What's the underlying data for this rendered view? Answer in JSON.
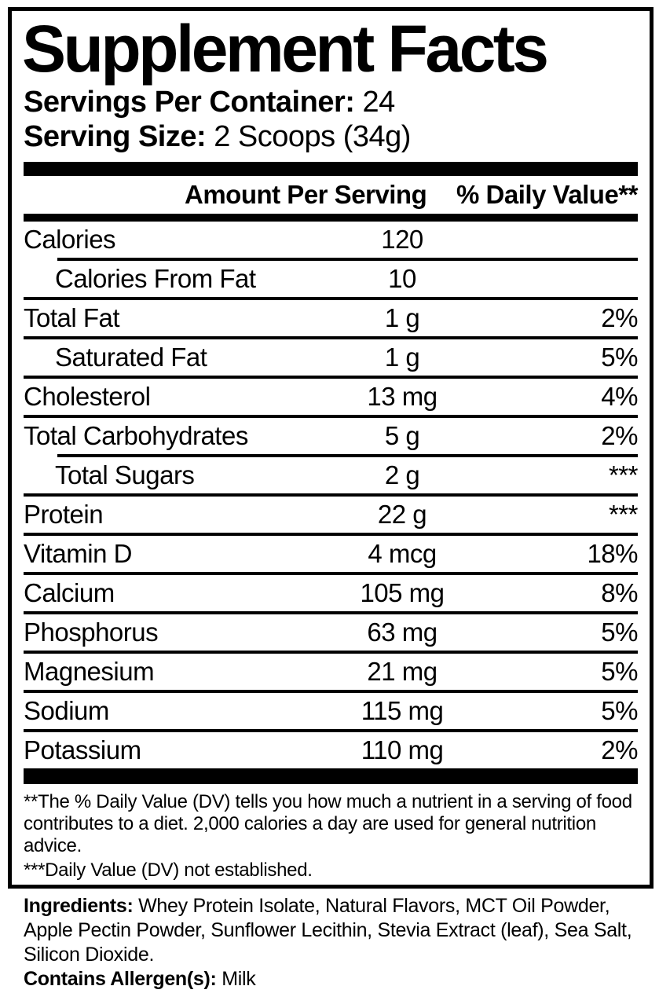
{
  "colors": {
    "ink": "#000000",
    "paper": "#ffffff"
  },
  "panel": {
    "title": "Supplement Facts",
    "servings_per_container_label": "Servings Per Container:",
    "servings_per_container_value": "24",
    "serving_size_label": "Serving Size:",
    "serving_size_value": "2 Scoops (34g)"
  },
  "table": {
    "amount_header": "Amount Per Serving",
    "dv_header": "% Daily Value**",
    "rows": [
      {
        "name": "Calories",
        "amount": "120",
        "dv": "",
        "indent": false,
        "separator": "none"
      },
      {
        "name": "Calories From Fat",
        "amount": "10",
        "dv": "",
        "indent": true,
        "separator": "indent"
      },
      {
        "name": "Total Fat",
        "amount": "1 g",
        "dv": "2%",
        "indent": false,
        "separator": "full"
      },
      {
        "name": "Saturated Fat",
        "amount": "1 g",
        "dv": "5%",
        "indent": true,
        "separator": "full"
      },
      {
        "name": "Cholesterol",
        "amount": "13 mg",
        "dv": "4%",
        "indent": false,
        "separator": "full"
      },
      {
        "name": "Total Carbohydrates",
        "amount": "5 g",
        "dv": "2%",
        "indent": false,
        "separator": "full"
      },
      {
        "name": "Total Sugars",
        "amount": "2 g",
        "dv": "***",
        "indent": true,
        "separator": "indent"
      },
      {
        "name": "Protein",
        "amount": "22 g",
        "dv": "***",
        "indent": false,
        "separator": "full"
      },
      {
        "name": "Vitamin D",
        "amount": "4 mcg",
        "dv": "18%",
        "indent": false,
        "separator": "full"
      },
      {
        "name": "Calcium",
        "amount": "105 mg",
        "dv": "8%",
        "indent": false,
        "separator": "full"
      },
      {
        "name": "Phosphorus",
        "amount": "63 mg",
        "dv": "5%",
        "indent": false,
        "separator": "full"
      },
      {
        "name": "Magnesium",
        "amount": "21 mg",
        "dv": "5%",
        "indent": false,
        "separator": "full"
      },
      {
        "name": "Sodium",
        "amount": "115 mg",
        "dv": "5%",
        "indent": false,
        "separator": "full"
      },
      {
        "name": "Potassium",
        "amount": "110 mg",
        "dv": "2%",
        "indent": false,
        "separator": "full"
      }
    ]
  },
  "footnotes": {
    "daily_value_note": "**The % Daily Value (DV) tells you how much a nutrient in a serving of food contributes to a diet. 2,000 calories a day are used for general nutrition advice.",
    "not_established_note": "***Daily Value (DV) not established."
  },
  "ingredients": {
    "label": "Ingredients:",
    "text": "Whey Protein Isolate, Natural Flavors, MCT Oil Powder, Apple Pectin Powder, Sunflower Lecithin, Stevia Extract (leaf), Sea Salt, Silicon Dioxide.",
    "allergen_label": "Contains Allergen(s):",
    "allergen_value": "Milk"
  }
}
